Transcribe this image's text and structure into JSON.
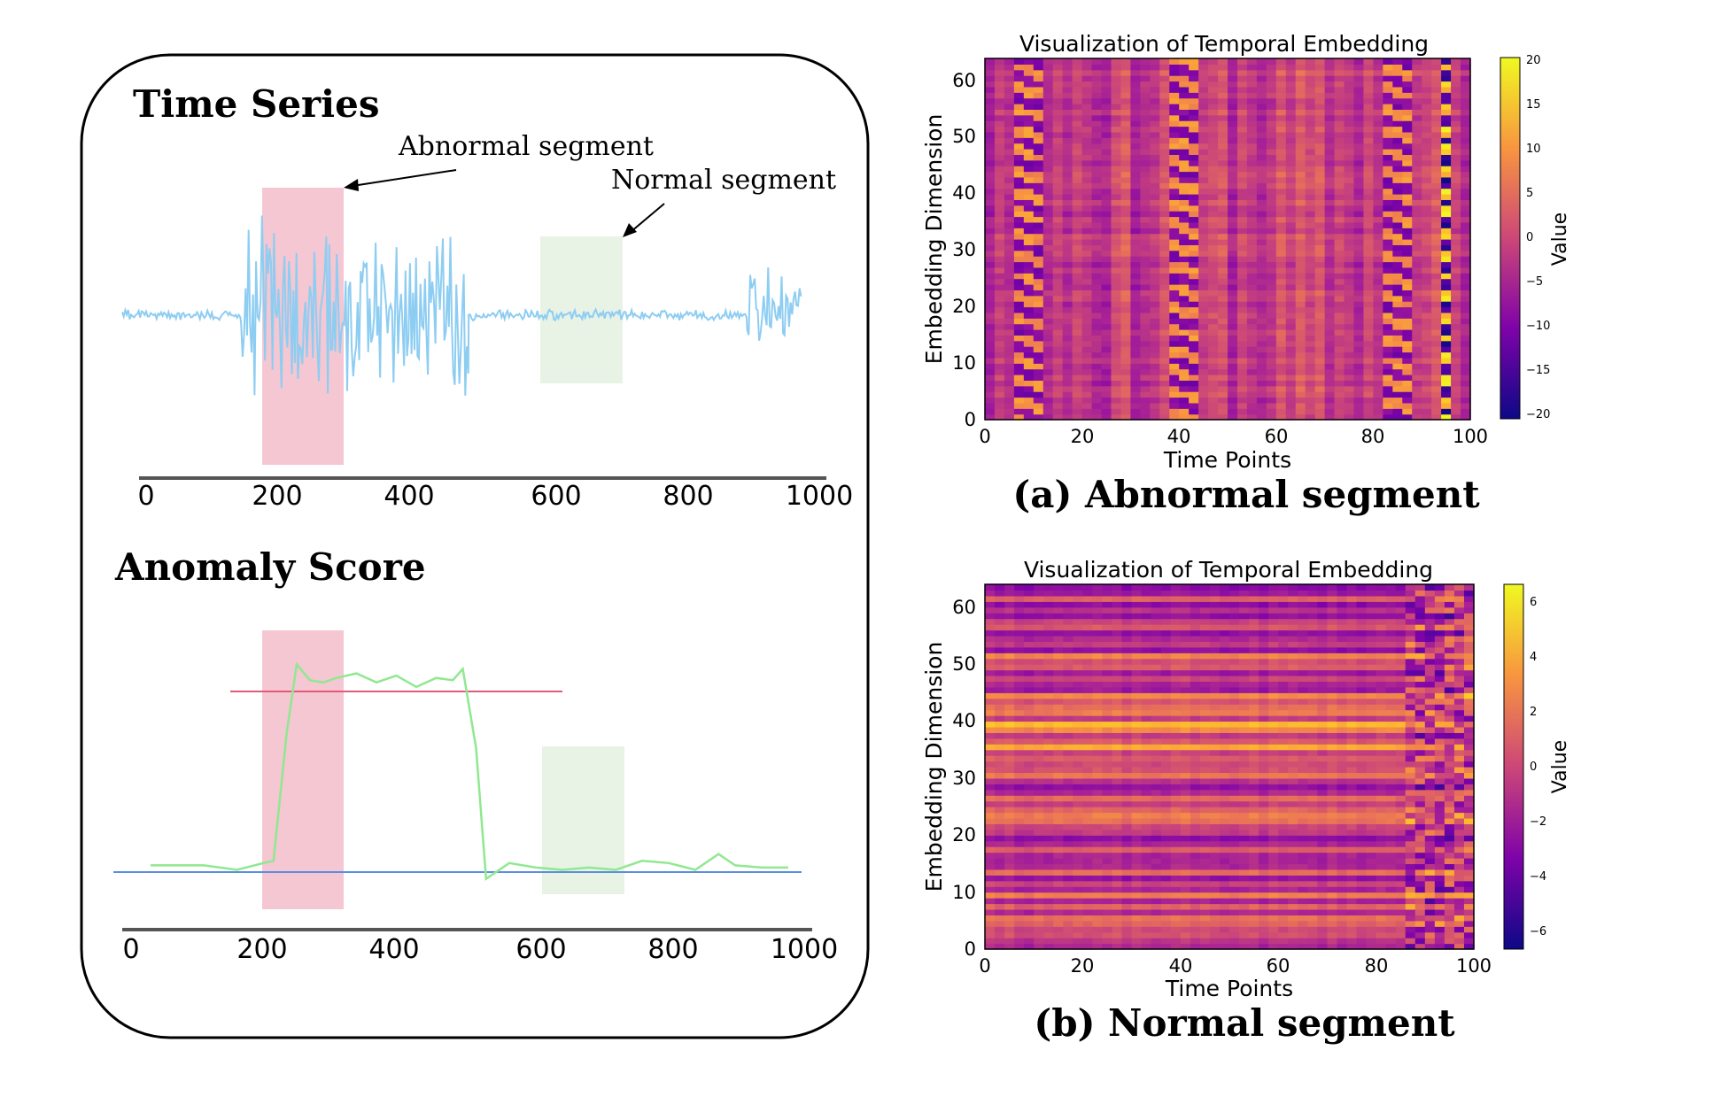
{
  "colors": {
    "series": "#8ecdf2",
    "score": "#90e890",
    "abnormal_band": "#f4c7d2",
    "normal_band": "#e8f3e6",
    "upper_threshold": "#e35a78",
    "lower_threshold": "#5a8fe0",
    "frame": "#000000"
  },
  "left_panel": {
    "time_series": {
      "title": "Time Series",
      "annotation_abnormal": "Abnormal segment",
      "annotation_normal": "Normal segment",
      "x_ticks": [
        "0",
        "200",
        "400",
        "600",
        "800",
        "1000"
      ]
    },
    "anomaly_score": {
      "title": "Anomaly Score",
      "x_ticks": [
        "0",
        "200",
        "400",
        "600",
        "800",
        "1000"
      ]
    }
  },
  "chart_data": [
    {
      "type": "line",
      "title": "Time Series",
      "xlim": [
        0,
        1000
      ],
      "series": [
        {
          "name": "time series",
          "segments": [
            {
              "x": [
                0,
                175
              ],
              "amplitude": "low"
            },
            {
              "x": [
                175,
                510
              ],
              "amplitude": "high"
            },
            {
              "x": [
                510,
                920
              ],
              "amplitude": "low"
            },
            {
              "x": [
                920,
                1000
              ],
              "amplitude": "medium"
            }
          ]
        }
      ],
      "highlighted_regions": [
        {
          "name": "Abnormal segment",
          "x": [
            200,
            325
          ]
        },
        {
          "name": "Normal segment",
          "x": [
            600,
            725
          ]
        }
      ]
    },
    {
      "type": "line",
      "title": "Anomaly Score",
      "xlim": [
        0,
        1000
      ],
      "ylim": [
        0,
        1
      ],
      "series": [
        {
          "name": "anomaly score",
          "x": [
            20,
            100,
            150,
            190,
            205,
            225,
            240,
            260,
            280,
            300,
            330,
            360,
            390,
            420,
            450,
            475,
            490,
            510,
            525,
            560,
            600,
            640,
            680,
            720,
            760,
            800,
            840,
            875,
            900,
            940,
            980
          ],
          "y": [
            0.03,
            0.03,
            0.01,
            0.04,
            0.05,
            0.62,
            0.92,
            0.85,
            0.84,
            0.86,
            0.88,
            0.84,
            0.87,
            0.82,
            0.86,
            0.85,
            0.9,
            0.55,
            -0.03,
            0.04,
            0.02,
            0.01,
            0.02,
            0.01,
            0.05,
            0.04,
            0.01,
            0.08,
            0.03,
            0.02,
            0.02
          ]
        }
      ],
      "thresholds": [
        {
          "name": "upper threshold",
          "y": 0.8,
          "x": [
            140,
            640
          ]
        },
        {
          "name": "lower threshold",
          "y": 0.0,
          "x": [
            0,
            1000
          ]
        }
      ],
      "highlighted_regions": [
        {
          "name": "Abnormal segment",
          "x": [
            200,
            325
          ]
        },
        {
          "name": "Normal segment",
          "x": [
            600,
            725
          ]
        }
      ]
    },
    {
      "type": "heatmap",
      "title": "Visualization of Temporal Embedding",
      "caption": "(a) Abnormal segment",
      "xlabel": "Time Points",
      "ylabel": "Embedding Dimension",
      "xlim": [
        0,
        100
      ],
      "ylim": [
        0,
        64
      ],
      "x_ticks": [
        "0",
        "20",
        "40",
        "60",
        "80",
        "100"
      ],
      "y_ticks": [
        "0",
        "10",
        "20",
        "30",
        "40",
        "50",
        "60"
      ],
      "colorbar": {
        "label": "Value",
        "range": [
          -20,
          20
        ],
        "ticks": [
          "20",
          "15",
          "10",
          "5",
          "0",
          "−5",
          "−10",
          "−15",
          "−20"
        ]
      },
      "colormap": "plasma",
      "notable_columns": [
        {
          "x": 93,
          "value_range": [
            -20,
            20
          ],
          "note": "strongest column"
        },
        {
          "x": 8,
          "value_range": [
            -12,
            12
          ]
        },
        {
          "x": 40,
          "value_range": [
            -12,
            12
          ]
        },
        {
          "x": 83,
          "value_range": [
            -12,
            12
          ]
        }
      ]
    },
    {
      "type": "heatmap",
      "title": "Visualization of Temporal Embedding",
      "caption": "(b) Normal segment",
      "xlabel": "Time Points",
      "ylabel": "Embedding Dimension",
      "xlim": [
        0,
        100
      ],
      "ylim": [
        0,
        64
      ],
      "x_ticks": [
        "0",
        "20",
        "40",
        "60",
        "80",
        "100"
      ],
      "y_ticks": [
        "0",
        "10",
        "20",
        "30",
        "40",
        "50",
        "60"
      ],
      "colorbar": {
        "label": "Value",
        "range": [
          -7,
          7
        ],
        "ticks": [
          "6",
          "4",
          "2",
          "0",
          "−2",
          "−4",
          "−6"
        ]
      },
      "colormap": "plasma",
      "pattern": "horizontal bands by embedding dimension; irregular region for time points 85–100"
    }
  ]
}
